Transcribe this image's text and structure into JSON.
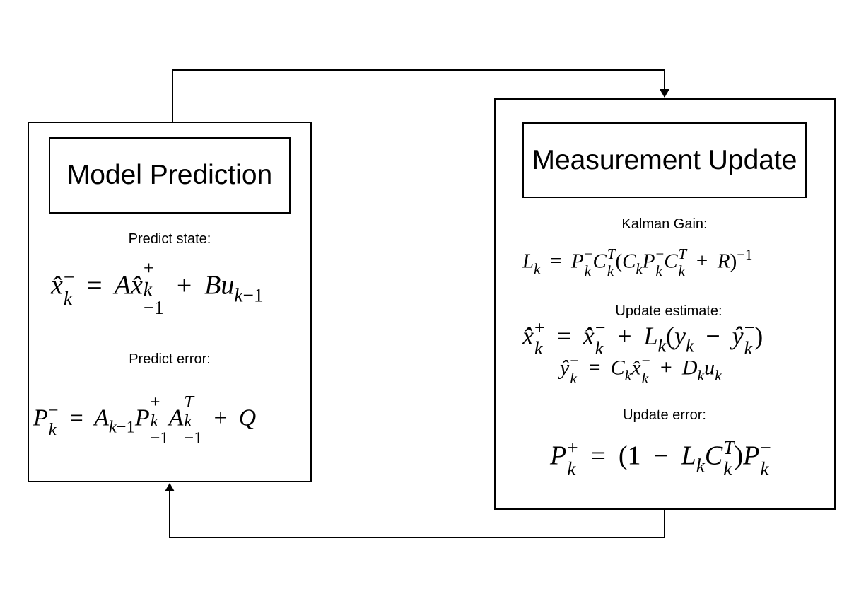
{
  "left_panel": {
    "title": "Model Prediction",
    "predict_state_label": "Predict state:",
    "predict_error_label": "Predict error:"
  },
  "right_panel": {
    "title": "Measurement Update",
    "kalman_gain_label": "Kalman Gain:",
    "update_estimate_label": "Update estimate:",
    "update_error_label": "Update error:"
  },
  "equations": {
    "predict_state": "x̂_k⁻ = A x̂_{k−1}⁺ + B u_{k−1}",
    "predict_error": "P_k⁻ = A_{k−1} P_{k−1}⁺ A_{k−1}ᵀ + Q",
    "kalman_gain": "L_k = P_k⁻ C_kᵀ (C_k P_k⁻ C_kᵀ + R)⁻¹",
    "update_estimate": "x̂_k⁺ = x̂_k⁻ + L_k (y_k − ŷ_k⁻)",
    "output_estimate": "ŷ_k⁻ = C_k x̂_k⁻ + D_k u_k",
    "update_error": "P_k⁺ = (1 − L_k C_kᵀ) P_k⁻"
  }
}
